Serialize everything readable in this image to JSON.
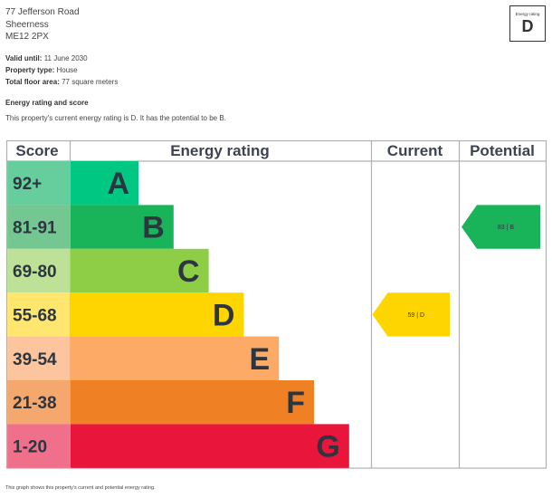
{
  "address": {
    "line1": "77 Jefferson Road",
    "line2": "Sheerness",
    "line3": "ME12 2PX"
  },
  "badge": {
    "label": "Energy rating",
    "value": "D"
  },
  "details": {
    "valid_until_label": "Valid until:",
    "valid_until_value": "11 June 2030",
    "property_type_label": "Property type:",
    "property_type_value": "House",
    "floor_area_label": "Total floor area:",
    "floor_area_value": "77 square meters"
  },
  "section": {
    "title": "Energy rating and score",
    "text": "This property's current energy rating is D. It has the potential to be B."
  },
  "chart_data": {
    "type": "bar",
    "headers": {
      "score": "Score",
      "rating": "Energy rating",
      "current": "Current",
      "potential": "Potential"
    },
    "bands": [
      {
        "score": "92+",
        "letter": "A",
        "min": 92,
        "max": 100,
        "color": "#00c781",
        "score_bg": "#66ce9c"
      },
      {
        "score": "81-91",
        "letter": "B",
        "min": 81,
        "max": 91,
        "color": "#19b459",
        "score_bg": "#75c792"
      },
      {
        "score": "69-80",
        "letter": "C",
        "min": 69,
        "max": 80,
        "color": "#8dce46",
        "score_bg": "#bde197"
      },
      {
        "score": "55-68",
        "letter": "D",
        "min": 55,
        "max": 68,
        "color": "#ffd500",
        "score_bg": "#ffe66f"
      },
      {
        "score": "39-54",
        "letter": "E",
        "min": 39,
        "max": 54,
        "color": "#fcaa65",
        "score_bg": "#fdc59d"
      },
      {
        "score": "21-38",
        "letter": "F",
        "min": 21,
        "max": 38,
        "color": "#ef8023",
        "score_bg": "#f5a86d"
      },
      {
        "score": "1-20",
        "letter": "G",
        "min": 1,
        "max": 20,
        "color": "#e9153b",
        "score_bg": "#f06f8a"
      }
    ],
    "current": {
      "value": 59,
      "letter": "D",
      "label": "59 | D",
      "color": "#ffd500"
    },
    "potential": {
      "value": 83,
      "letter": "B",
      "label": "83 | B",
      "color": "#19b459"
    }
  },
  "footnote": "This graph shows this property's current and potential energy rating."
}
